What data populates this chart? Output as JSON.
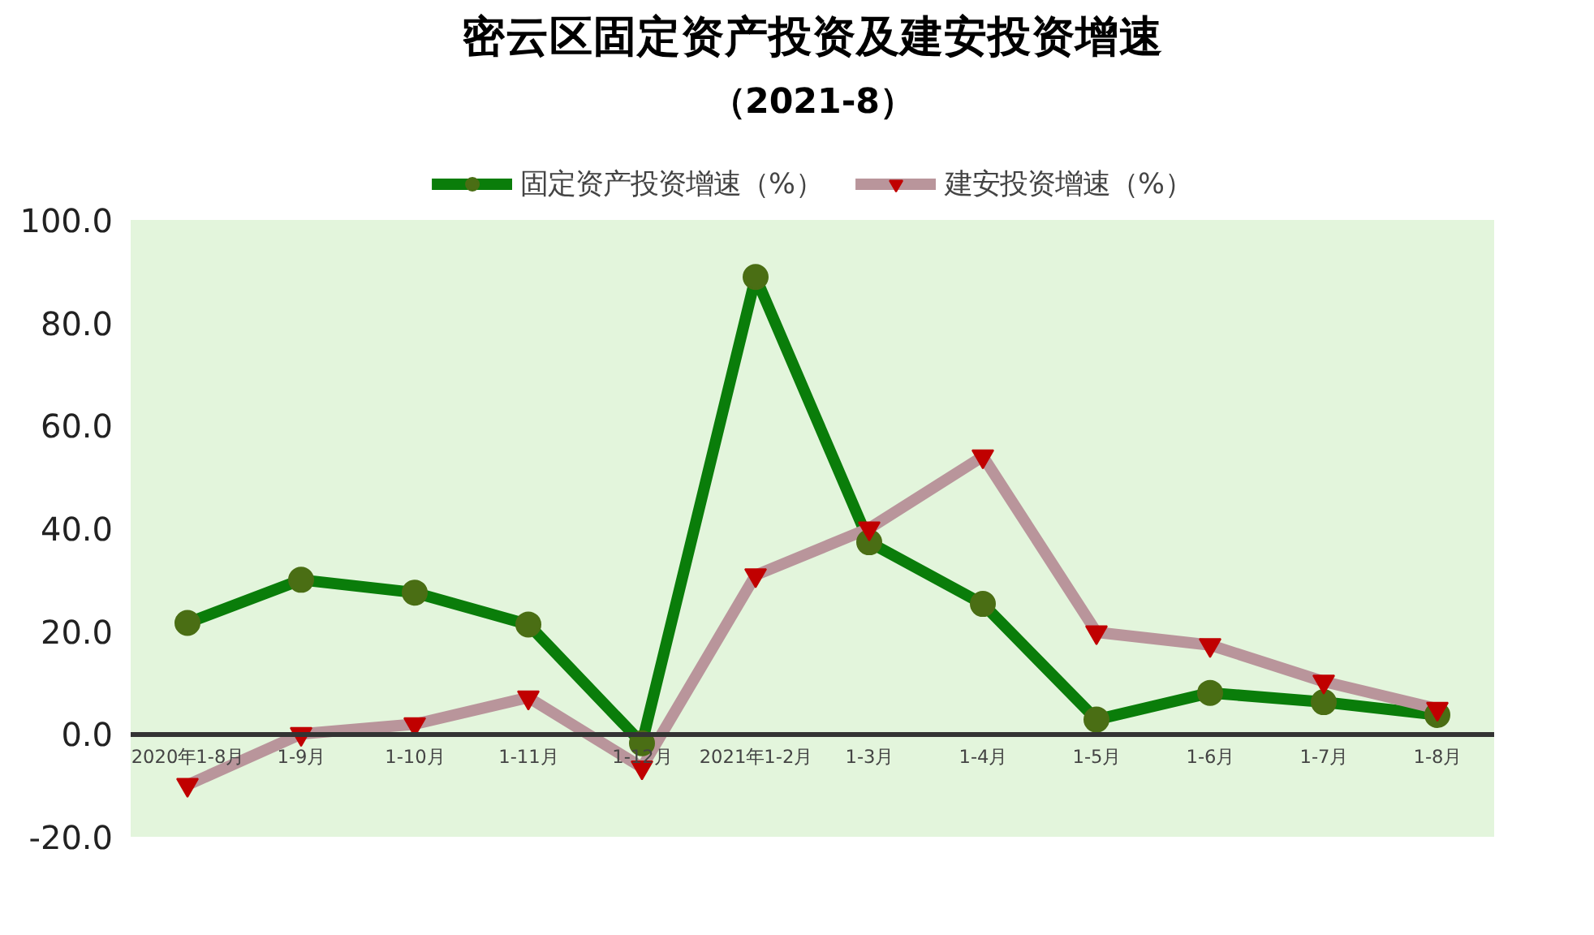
{
  "chart_data": {
    "type": "line",
    "title": "密云区固定资产投资及建安投资增速",
    "subtitle": "（2021-8）",
    "categories": [
      "2020年1-8月",
      "1-9月",
      "1-10月",
      "1-11月",
      "1-12月",
      "2021年1-2月",
      "1-3月",
      "1-4月",
      "1-5月",
      "1-6月",
      "1-7月",
      "1-8月"
    ],
    "series": [
      {
        "name": "固定资产投资增速（%）",
        "color": "#0a7d0a",
        "marker": "circle",
        "values": [
          21.6,
          30.0,
          27.5,
          21.3,
          -1.8,
          88.9,
          37.3,
          25.3,
          2.8,
          8.0,
          6.2,
          3.7
        ]
      },
      {
        "name": "建安投资增速（%）",
        "color": "#b9959b",
        "marker": "triangle",
        "values": [
          -9.9,
          0.0,
          1.9,
          7.1,
          -6.5,
          30.9,
          40.0,
          54.0,
          19.8,
          17.3,
          10.2,
          4.9
        ]
      }
    ],
    "ylim": [
      -20,
      100
    ],
    "yticks": [
      {
        "value": -20,
        "label": "-20.0"
      },
      {
        "value": 0,
        "label": "0.0"
      },
      {
        "value": 20,
        "label": "20.0"
      },
      {
        "value": 40,
        "label": "40.0"
      },
      {
        "value": 60,
        "label": "60.0"
      },
      {
        "value": 80,
        "label": "80.0"
      },
      {
        "value": 100,
        "label": "100.0"
      }
    ],
    "legend": "top",
    "grid": false,
    "line_style": "solid"
  }
}
